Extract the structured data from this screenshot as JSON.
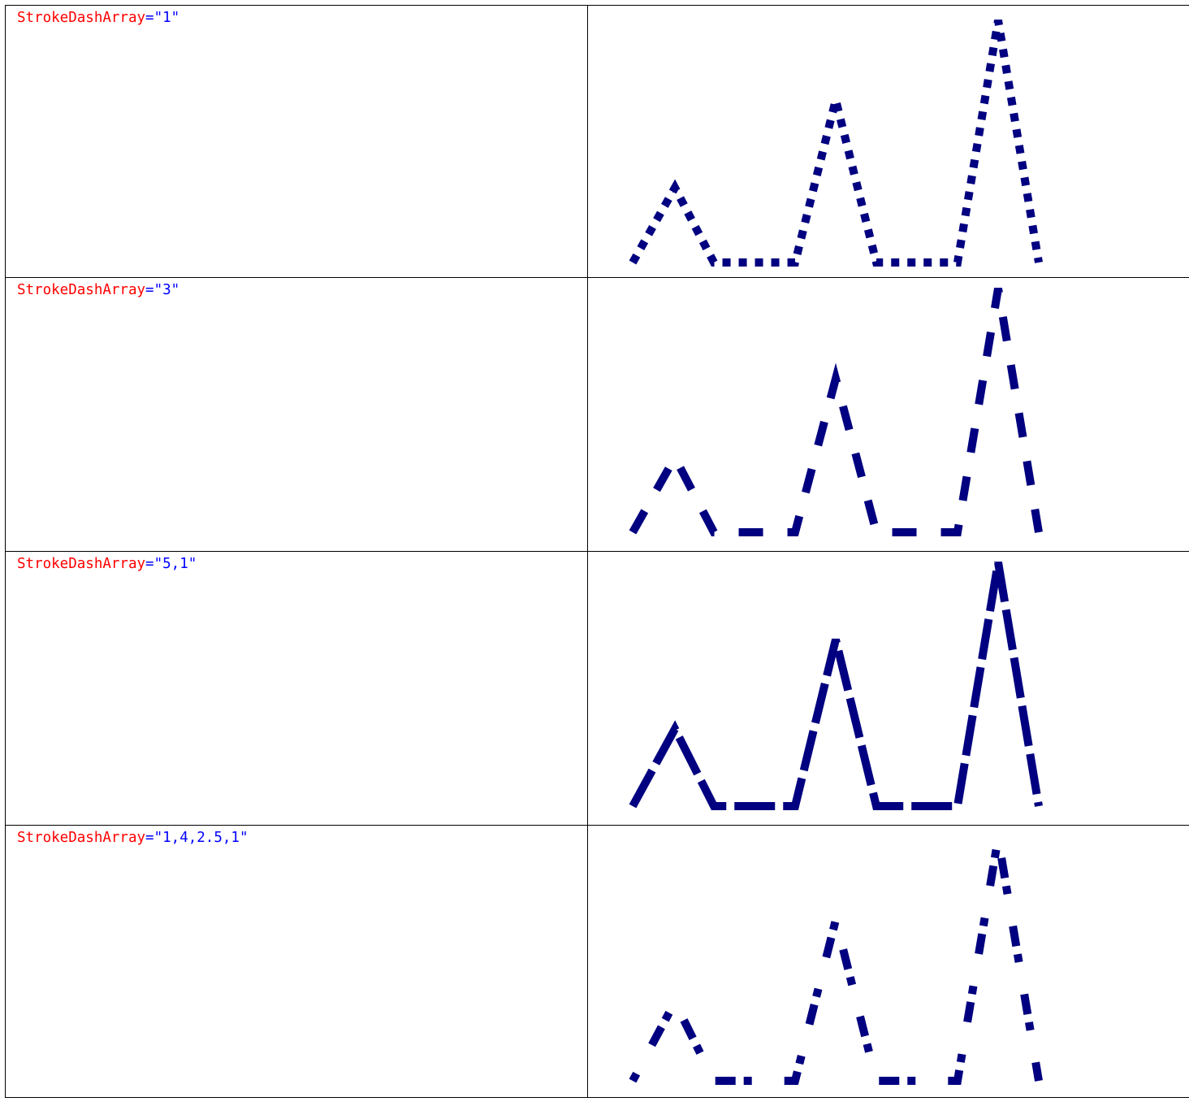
{
  "stroke_color": "#000080",
  "rows": [
    {
      "attribute": "StrokeDashArray",
      "equals": "=",
      "value": "\"1\"",
      "dash": [
        1
      ]
    },
    {
      "attribute": "StrokeDashArray",
      "equals": "=",
      "value": "\"3\"",
      "dash": [
        3
      ]
    },
    {
      "attribute": "StrokeDashArray",
      "equals": "=",
      "value": "\"5,1\"",
      "dash": [
        5,
        1
      ]
    },
    {
      "attribute": "StrokeDashArray",
      "equals": "=",
      "value": "\"1,4,2.5,1\"",
      "dash": [
        1,
        4,
        2.5,
        1
      ]
    }
  ]
}
